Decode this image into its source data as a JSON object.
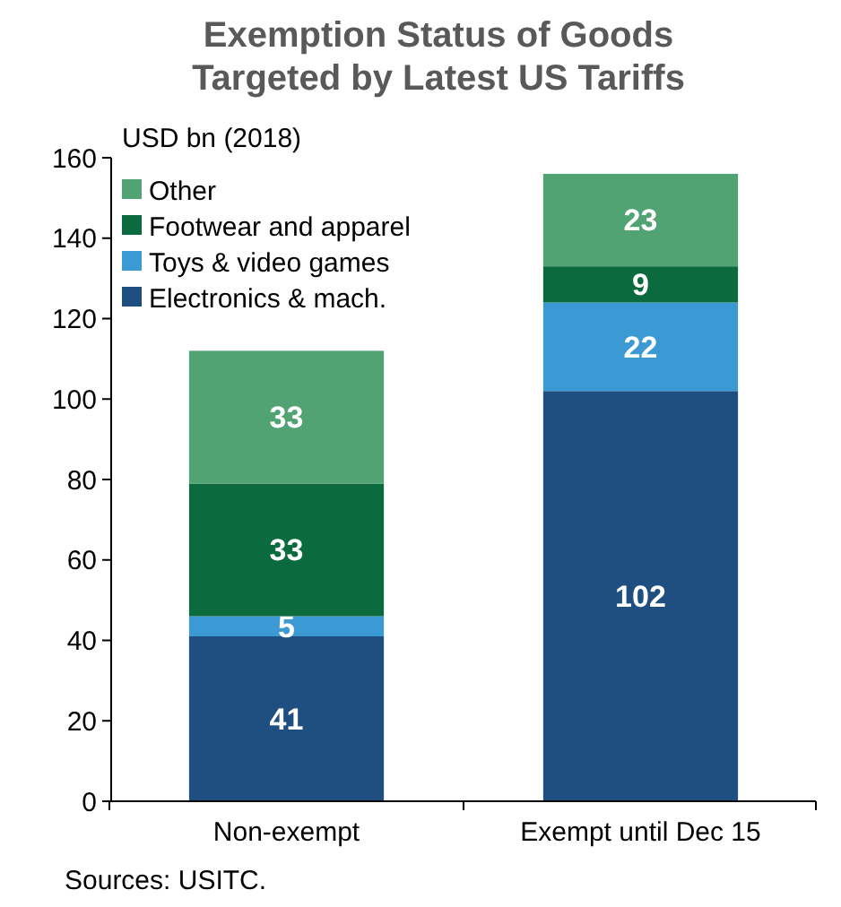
{
  "chart_data": {
    "type": "bar",
    "title": "Exemption Status of Goods Targeted by Latest US Tariffs",
    "ylabel": "USD bn (2018)",
    "categories": [
      "Non-exempt",
      "Exempt until Dec 15"
    ],
    "stacked": true,
    "series": [
      {
        "name": "Electronics & mach.",
        "color": "#1f4e80",
        "values": [
          41,
          102
        ]
      },
      {
        "name": "Toys & video games",
        "color": "#3b9ad4",
        "values": [
          5,
          22
        ]
      },
      {
        "name": "Footwear and apparel",
        "color": "#0b6b3e",
        "values": [
          33,
          9
        ]
      },
      {
        "name": "Other",
        "color": "#52a374",
        "values": [
          33,
          23
        ]
      }
    ],
    "ylim": [
      0,
      160
    ],
    "yticks": [
      0,
      20,
      40,
      60,
      80,
      100,
      120,
      140,
      160
    ],
    "grid": false,
    "legend": "top left",
    "data_labels": true,
    "annotations": [
      "Sources: USITC."
    ]
  }
}
